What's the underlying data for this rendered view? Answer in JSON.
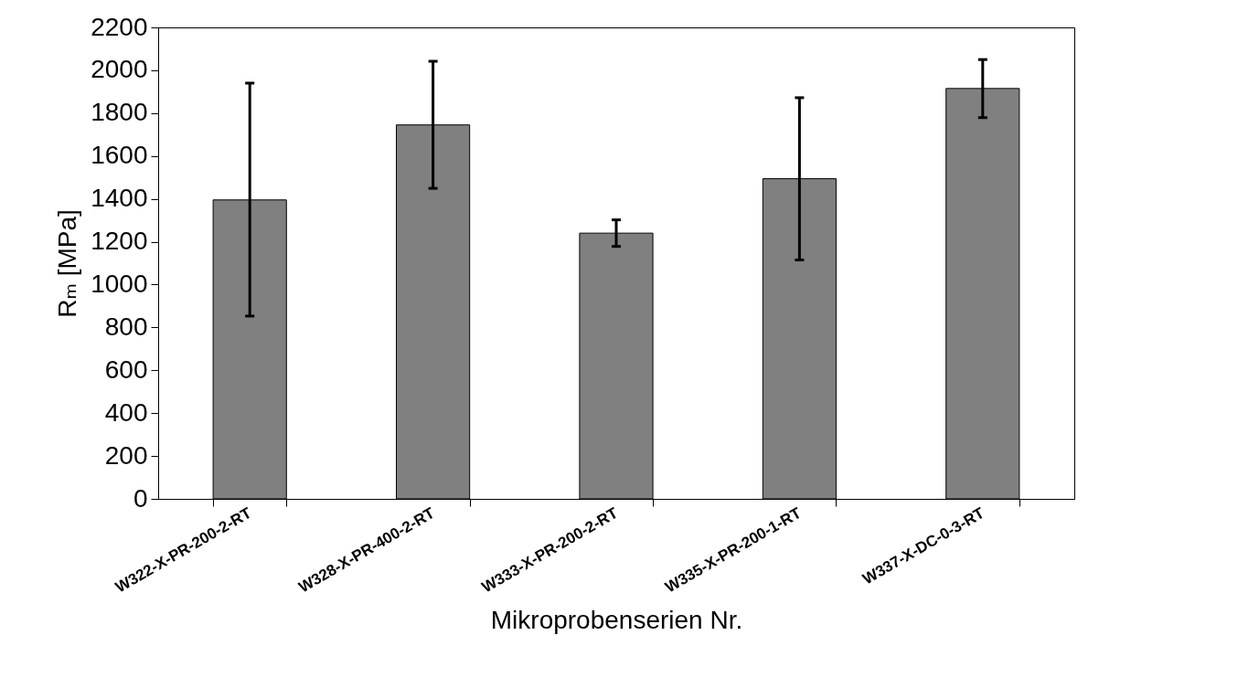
{
  "chart_data": {
    "type": "bar",
    "xlabel": "Mikroprobenserien Nr.",
    "ylabel": "Rₘ [MPa]",
    "categories": [
      "W322-X-PR-200-2-RT",
      "W328-X-PR-400-2-RT",
      "W333-X-PR-200-2-RT",
      "W335-X-PR-200-1-RT",
      "W337-X-DC-0-3-RT"
    ],
    "values": [
      1395,
      1745,
      1240,
      1494,
      1915
    ],
    "errors": [
      [
        853,
        1940
      ],
      [
        1449,
        2042
      ],
      [
        1178,
        1302
      ],
      [
        1115,
        1872
      ],
      [
        1779,
        2050
      ]
    ],
    "color": "#808080",
    "ylim": [
      0,
      2200
    ],
    "yticks": [
      0,
      200,
      400,
      600,
      800,
      1000,
      1200,
      1400,
      1600,
      1800,
      2000,
      2200
    ],
    "grid": false
  }
}
